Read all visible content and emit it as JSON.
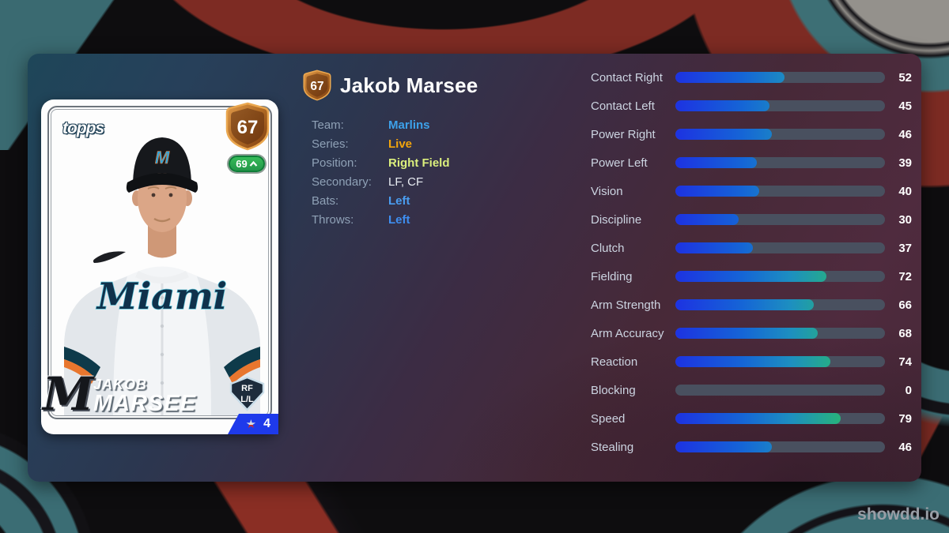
{
  "watermark": "showdd.io",
  "colors": {
    "card-blue": "#2badе4",
    "banner-blue": "#1e3aeb",
    "bar-track": "#49505f",
    "bar-gradient-start": "#1d32e2",
    "bar-gradient-end": "#32d56e",
    "pill-green": "#2fae4e",
    "shield-bronze": "#b06a24"
  },
  "player": {
    "name": "Jakob Marsee",
    "overall": "67",
    "card": {
      "brand": "topps",
      "overall": "67",
      "trend_value": "69",
      "trend_direction": "up",
      "cap_letter": "M",
      "jersey_script": "Miami",
      "team_monogram": "M",
      "first_name": "JAKOB",
      "last_name": "MARSEE",
      "position_short": "RF",
      "handedness_short": "L/L",
      "star_icon": "star",
      "star_count": "4"
    },
    "info": [
      {
        "label": "Team:",
        "value": "Marlins",
        "color": "#3da1ea",
        "bold": true
      },
      {
        "label": "Series:",
        "value": "Live",
        "color": "#f2a50c",
        "bold": true
      },
      {
        "label": "Position:",
        "value": "Right Field",
        "color": "#dbef7d",
        "bold": true
      },
      {
        "label": "Secondary:",
        "value": "LF, CF",
        "color": "#e8ecf2",
        "bold": false
      },
      {
        "label": "Bats:",
        "value": "Left",
        "color": "#4a9df0",
        "bold": true
      },
      {
        "label": "Throws:",
        "value": "Left",
        "color": "#3e8ef0",
        "bold": true
      }
    ]
  },
  "stats": [
    {
      "label": "Contact Right",
      "value": 52
    },
    {
      "label": "Contact Left",
      "value": 45
    },
    {
      "label": "Power Right",
      "value": 46
    },
    {
      "label": "Power Left",
      "value": 39
    },
    {
      "label": "Vision",
      "value": 40
    },
    {
      "label": "Discipline",
      "value": 30
    },
    {
      "label": "Clutch",
      "value": 37
    },
    {
      "label": "Fielding",
      "value": 72
    },
    {
      "label": "Arm Strength",
      "value": 66
    },
    {
      "label": "Arm Accuracy",
      "value": 68
    },
    {
      "label": "Reaction",
      "value": 74
    },
    {
      "label": "Blocking",
      "value": 0
    },
    {
      "label": "Speed",
      "value": 79
    },
    {
      "label": "Stealing",
      "value": 46
    }
  ]
}
